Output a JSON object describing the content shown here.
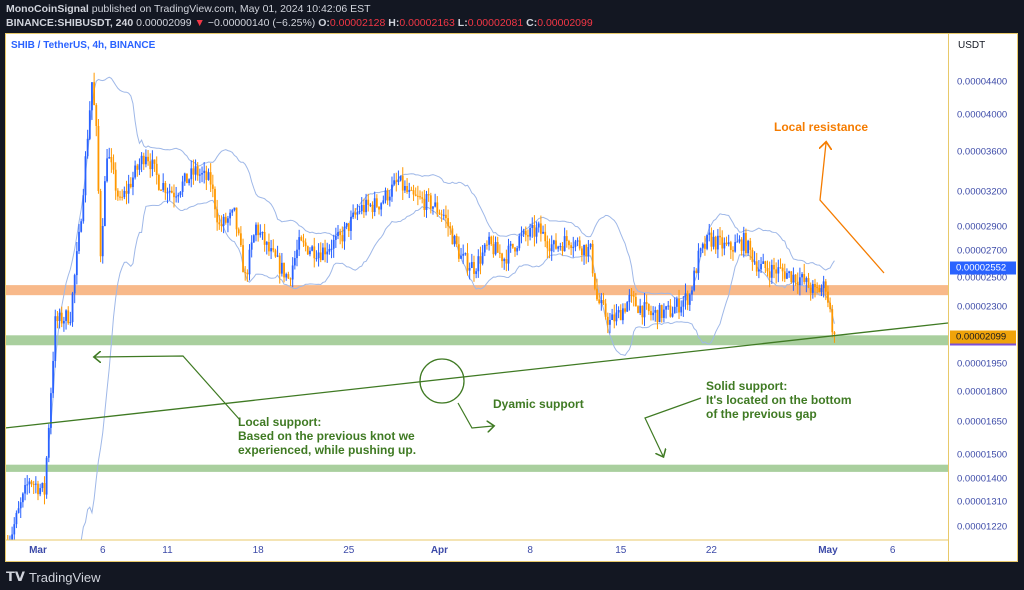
{
  "header": {
    "author": "MonoCoinSignal",
    "published": "published on TradingView.com, May 01, 2024 10:42:06 EST",
    "symbol_interval": "BINANCE:SHIBUSDT, 240",
    "last": "0.00002099",
    "change_icon": "triangle-down-icon",
    "change": "−0.00000140 (−6.25%)",
    "o_label": "O:",
    "o": "0.00002128",
    "h_label": "H:",
    "h": "0.00002163",
    "l_label": "L:",
    "l": "0.00002081",
    "c_label": "C:",
    "c": "0.00002099"
  },
  "chart_title": "SHIB / TetherUS, 4h, BINANCE",
  "currency": "USDT",
  "colors": {
    "up": "#2962ff",
    "down": "#ff9800",
    "bands": "#9fb8e8",
    "resistance": "#f8b98a",
    "support": "#a9cf9e",
    "annotation_green": "#3f7a23",
    "annotation_orange": "#f57c00"
  },
  "price_labels": {
    "upper_band": "0.00002552",
    "last": "0.00002099"
  },
  "annotations": {
    "local_resistance": "Local resistance",
    "dynamic_support": "Dyamic support",
    "local_support": "Local support:\nBased on the previous knot we\nexperienced, while pushing up.",
    "solid_support": "Solid support:\nIt's located on the bottom\nof the previous gap"
  },
  "footer": {
    "brand": "TradingView",
    "logo_icon": "tradingview-logo-icon"
  },
  "chart_data": {
    "type": "candlestick",
    "interval": "4h",
    "y_scale": "log",
    "ylim": [
      1.17e-05,
      4.65e-05
    ],
    "y_ticks": [
      "0.00004400",
      "0.00004000",
      "0.00003600",
      "0.00003200",
      "0.00002900",
      "0.00002700",
      "0.00002500",
      "0.00002300",
      "0.00001950",
      "0.00001800",
      "0.00001650",
      "0.00001500",
      "0.00001400",
      "0.00001310",
      "0.00001220"
    ],
    "x_ticks": [
      {
        "label": "Mar",
        "date": "2024-03-01",
        "major": true
      },
      {
        "label": "6",
        "date": "2024-03-06"
      },
      {
        "label": "11",
        "date": "2024-03-11"
      },
      {
        "label": "18",
        "date": "2024-03-18"
      },
      {
        "label": "25",
        "date": "2024-03-25"
      },
      {
        "label": "Apr",
        "date": "2024-04-01",
        "major": true
      },
      {
        "label": "8",
        "date": "2024-04-08"
      },
      {
        "label": "15",
        "date": "2024-04-15"
      },
      {
        "label": "22",
        "date": "2024-04-22"
      },
      {
        "label": "May",
        "date": "2024-05-01",
        "major": true
      },
      {
        "label": "6",
        "date": "2024-05-06"
      }
    ],
    "zones": [
      {
        "kind": "resistance",
        "from": 2.38e-05,
        "to": 2.45e-05
      },
      {
        "kind": "support",
        "from": 2.06e-05,
        "to": 2.12e-05
      },
      {
        "kind": "support",
        "from": 1.43e-05,
        "to": 1.46e-05
      }
    ],
    "price_path": [
      [
        "2024-02-27T16",
        1.16e-05
      ],
      [
        "2024-02-29T08",
        1.4e-05
      ],
      [
        "2024-03-01T12",
        1.35e-05
      ],
      [
        "2024-03-02T08",
        2.2e-05
      ],
      [
        "2024-03-03T12",
        2.25e-05
      ],
      [
        "2024-03-04T04",
        2.8e-05
      ],
      [
        "2024-03-05T04",
        4.4e-05
      ],
      [
        "2024-03-05T12",
        3.8e-05
      ],
      [
        "2024-03-05T20",
        2.7e-05
      ],
      [
        "2024-03-06T08",
        3.6e-05
      ],
      [
        "2024-03-07T08",
        3.1e-05
      ],
      [
        "2024-03-08T04",
        3.3e-05
      ],
      [
        "2024-03-09T08",
        3.6e-05
      ],
      [
        "2024-03-10T08",
        3.3e-05
      ],
      [
        "2024-03-11T12",
        3.2e-05
      ],
      [
        "2024-03-13T04",
        3.4e-05
      ],
      [
        "2024-03-14T08",
        3.3e-05
      ],
      [
        "2024-03-15T00",
        2.9e-05
      ],
      [
        "2024-03-16T04",
        3e-05
      ],
      [
        "2024-03-17T00",
        2.5e-05
      ],
      [
        "2024-03-17T20",
        2.9e-05
      ],
      [
        "2024-03-18T20",
        2.7e-05
      ],
      [
        "2024-03-20T08",
        2.5e-05
      ],
      [
        "2024-03-21T04",
        2.75e-05
      ],
      [
        "2024-03-22T20",
        2.7e-05
      ],
      [
        "2024-03-24T08",
        2.8e-05
      ],
      [
        "2024-03-25T20",
        3.05e-05
      ],
      [
        "2024-03-27T08",
        3.1e-05
      ],
      [
        "2024-03-28T20",
        3.3e-05
      ],
      [
        "2024-03-29T20",
        3.15e-05
      ],
      [
        "2024-03-31T08",
        3.1e-05
      ],
      [
        "2024-04-01T08",
        3e-05
      ],
      [
        "2024-04-02T16",
        2.65e-05
      ],
      [
        "2024-04-03T16",
        2.58e-05
      ],
      [
        "2024-04-04T20",
        2.75e-05
      ],
      [
        "2024-04-06T00",
        2.65e-05
      ],
      [
        "2024-04-07T04",
        2.8e-05
      ],
      [
        "2024-04-08T16",
        2.87e-05
      ],
      [
        "2024-04-09T20",
        2.73e-05
      ],
      [
        "2024-04-11T00",
        2.8e-05
      ],
      [
        "2024-04-12T16",
        2.7e-05
      ],
      [
        "2024-04-13T04",
        2.35e-05
      ],
      [
        "2024-04-14T04",
        2.2e-05
      ],
      [
        "2024-04-14T20",
        2.25e-05
      ],
      [
        "2024-04-15T16",
        2.35e-05
      ],
      [
        "2024-04-17T08",
        2.25e-05
      ],
      [
        "2024-04-18T20",
        2.27e-05
      ],
      [
        "2024-04-20T08",
        2.38e-05
      ],
      [
        "2024-04-21T00",
        2.65e-05
      ],
      [
        "2024-04-21T20",
        2.8e-05
      ],
      [
        "2024-04-23T08",
        2.72e-05
      ],
      [
        "2024-04-24T12",
        2.78e-05
      ],
      [
        "2024-04-25T16",
        2.58e-05
      ],
      [
        "2024-04-27T08",
        2.55e-05
      ],
      [
        "2024-04-28T20",
        2.5e-05
      ],
      [
        "2024-04-30T00",
        2.4e-05
      ],
      [
        "2024-04-30T20",
        2.45e-05
      ],
      [
        "2024-05-01T08",
        2.18e-05
      ],
      [
        "2024-05-01T12",
        2.1e-05
      ]
    ]
  }
}
